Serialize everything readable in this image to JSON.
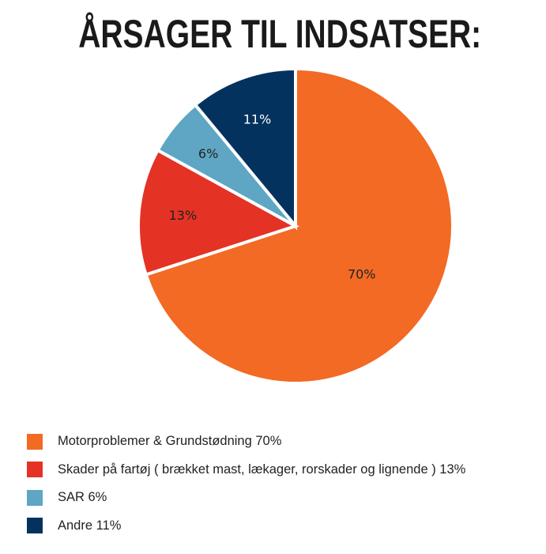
{
  "chart_data": {
    "type": "pie",
    "title": "ÅRSAGER TIL INDSATSER:",
    "start_angle_deg": 0,
    "direction": "clockwise",
    "legend_position": "bottom-left",
    "slices": [
      {
        "key": "motor",
        "value": 70,
        "label": "70%",
        "color": "#f26a24",
        "label_color": "#222222",
        "legend": "Motorproblemer & Grundstødning 70%"
      },
      {
        "key": "skader",
        "value": 13,
        "label": "13%",
        "color": "#e43225",
        "label_color": "#222222",
        "legend": "Skader på fartøj ( brækket mast, lækager, rorskader og lignende ) 13%"
      },
      {
        "key": "sar",
        "value": 6,
        "label": "6%",
        "color": "#5ea6c4",
        "label_color": "#222222",
        "legend": "SAR 6%"
      },
      {
        "key": "andre",
        "value": 11,
        "label": "11%",
        "color": "#04325f",
        "label_color": "#ffffff",
        "legend": "Andre 11%"
      }
    ]
  }
}
